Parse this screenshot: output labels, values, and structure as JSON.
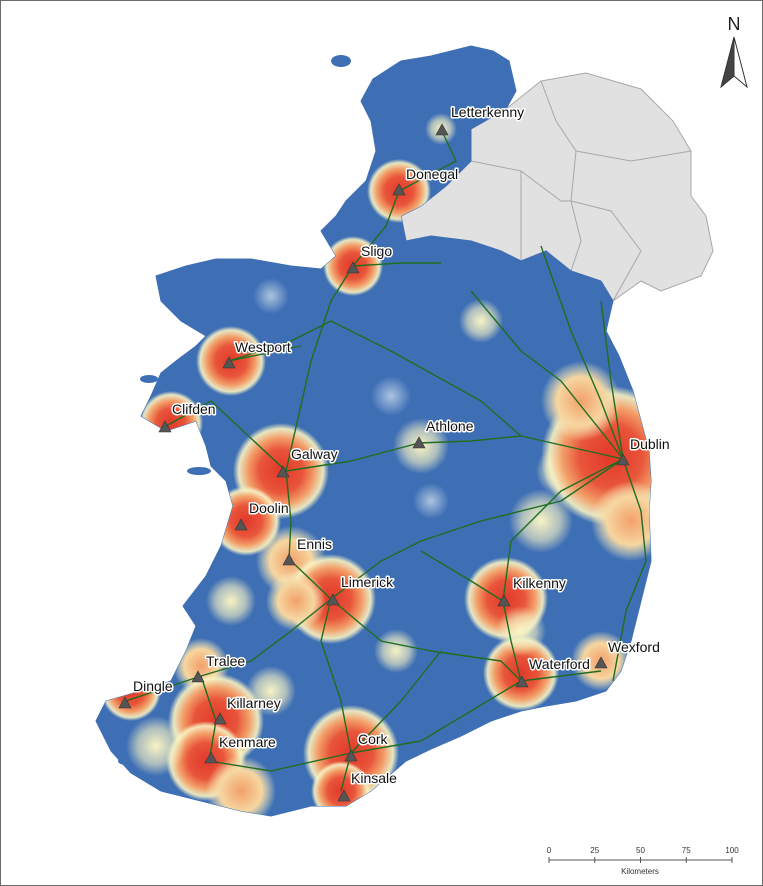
{
  "map": {
    "north_label": "N",
    "scale": {
      "ticks": [
        "0",
        "25",
        "50",
        "75",
        "100"
      ],
      "unit": "Kilometers"
    },
    "colors": {
      "base": "#3e6fb5",
      "northern_ireland": "#e1e1e1",
      "border": "#a8a8a8",
      "road": "#1f6e1f",
      "marker": "#555555",
      "heat_low": "#f8f3c4",
      "heat_mid": "#f3a06a",
      "heat_high": "#e2382a"
    },
    "towns": [
      {
        "name": "Letterkenny"
      },
      {
        "name": "Donegal"
      },
      {
        "name": "Sligo"
      },
      {
        "name": "Westport"
      },
      {
        "name": "Clifden"
      },
      {
        "name": "Athlone"
      },
      {
        "name": "Dublin"
      },
      {
        "name": "Galway"
      },
      {
        "name": "Doolin"
      },
      {
        "name": "Ennis"
      },
      {
        "name": "Limerick"
      },
      {
        "name": "Kilkenny"
      },
      {
        "name": "Wexford"
      },
      {
        "name": "Waterford"
      },
      {
        "name": "Tralee"
      },
      {
        "name": "Dingle"
      },
      {
        "name": "Killarney"
      },
      {
        "name": "Kenmare"
      },
      {
        "name": "Cork"
      },
      {
        "name": "Kinsale"
      }
    ]
  }
}
